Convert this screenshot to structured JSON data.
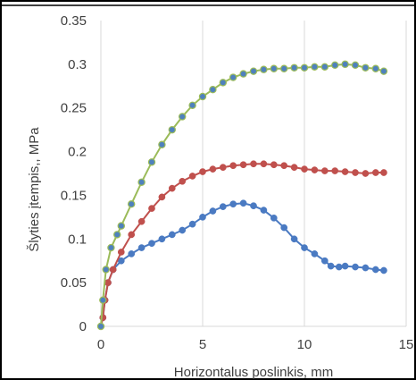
{
  "chart_data": {
    "type": "scatter",
    "title": "",
    "xlabel": "Horizontalus poslinkis, mm",
    "ylabel": "Šlyties įtempis,, MPa",
    "xlim": [
      0,
      15
    ],
    "ylim": [
      0,
      0.35
    ],
    "xticks": [
      "0",
      "5",
      "10",
      "15"
    ],
    "yticks": [
      "0",
      "0.05",
      "0.1",
      "0.15",
      "0.2",
      "0.25",
      "0.3",
      "0.35"
    ],
    "grid": "vertical",
    "legend": "none",
    "colors": {
      "blue": "#4a7ac2",
      "red": "#c0504d",
      "green": "#9bbb59",
      "green_marker": "#4f81bd"
    },
    "series": [
      {
        "color": "#4a7ac2",
        "points": [
          [
            0,
            0
          ],
          [
            0.1,
            0.01
          ],
          [
            0.2,
            0.03
          ],
          [
            0.35,
            0.05
          ],
          [
            0.6,
            0.065
          ],
          [
            1,
            0.075
          ],
          [
            1.5,
            0.083
          ],
          [
            2,
            0.09
          ],
          [
            2.5,
            0.095
          ],
          [
            3,
            0.1
          ],
          [
            3.5,
            0.105
          ],
          [
            4,
            0.11
          ],
          [
            4.5,
            0.117
          ],
          [
            5,
            0.125
          ],
          [
            5.5,
            0.132
          ],
          [
            6,
            0.137
          ],
          [
            6.5,
            0.14
          ],
          [
            7,
            0.141
          ],
          [
            7.5,
            0.138
          ],
          [
            8,
            0.133
          ],
          [
            8.5,
            0.124
          ],
          [
            9,
            0.113
          ],
          [
            9.5,
            0.1
          ],
          [
            10,
            0.09
          ],
          [
            10.5,
            0.083
          ],
          [
            11,
            0.075
          ],
          [
            11.3,
            0.069
          ],
          [
            11.7,
            0.068
          ],
          [
            12,
            0.069
          ],
          [
            12.5,
            0.068
          ],
          [
            13,
            0.067
          ],
          [
            13.5,
            0.065
          ],
          [
            13.9,
            0.064
          ]
        ]
      },
      {
        "color": "#c0504d",
        "points": [
          [
            0,
            0
          ],
          [
            0.1,
            0.01
          ],
          [
            0.2,
            0.03
          ],
          [
            0.35,
            0.05
          ],
          [
            0.6,
            0.065
          ],
          [
            1,
            0.085
          ],
          [
            1.5,
            0.105
          ],
          [
            2,
            0.12
          ],
          [
            2.5,
            0.135
          ],
          [
            3,
            0.148
          ],
          [
            3.5,
            0.158
          ],
          [
            4,
            0.166
          ],
          [
            4.5,
            0.172
          ],
          [
            5,
            0.177
          ],
          [
            5.5,
            0.18
          ],
          [
            6,
            0.182
          ],
          [
            6.5,
            0.184
          ],
          [
            7,
            0.185
          ],
          [
            7.5,
            0.186
          ],
          [
            8,
            0.186
          ],
          [
            8.5,
            0.185
          ],
          [
            9,
            0.184
          ],
          [
            9.5,
            0.182
          ],
          [
            10,
            0.18
          ],
          [
            10.5,
            0.179
          ],
          [
            11,
            0.178
          ],
          [
            11.5,
            0.178
          ],
          [
            12,
            0.177
          ],
          [
            12.5,
            0.176
          ],
          [
            13,
            0.175
          ],
          [
            13.5,
            0.176
          ],
          [
            13.9,
            0.176
          ]
        ]
      },
      {
        "color": "#9bbb59",
        "marker": "#4f81bd",
        "points": [
          [
            0,
            0
          ],
          [
            0.1,
            0.03
          ],
          [
            0.25,
            0.065
          ],
          [
            0.5,
            0.09
          ],
          [
            0.8,
            0.105
          ],
          [
            1,
            0.115
          ],
          [
            1.5,
            0.14
          ],
          [
            2,
            0.165
          ],
          [
            2.5,
            0.188
          ],
          [
            3,
            0.208
          ],
          [
            3.5,
            0.225
          ],
          [
            4,
            0.24
          ],
          [
            4.5,
            0.253
          ],
          [
            5,
            0.263
          ],
          [
            5.5,
            0.271
          ],
          [
            6,
            0.279
          ],
          [
            6.5,
            0.285
          ],
          [
            7,
            0.289
          ],
          [
            7.5,
            0.292
          ],
          [
            8,
            0.294
          ],
          [
            8.5,
            0.295
          ],
          [
            9,
            0.295
          ],
          [
            9.5,
            0.296
          ],
          [
            10,
            0.296
          ],
          [
            10.5,
            0.297
          ],
          [
            11,
            0.297
          ],
          [
            11.5,
            0.299
          ],
          [
            12,
            0.3
          ],
          [
            12.5,
            0.299
          ],
          [
            13,
            0.296
          ],
          [
            13.5,
            0.295
          ],
          [
            13.9,
            0.292
          ]
        ]
      }
    ]
  }
}
